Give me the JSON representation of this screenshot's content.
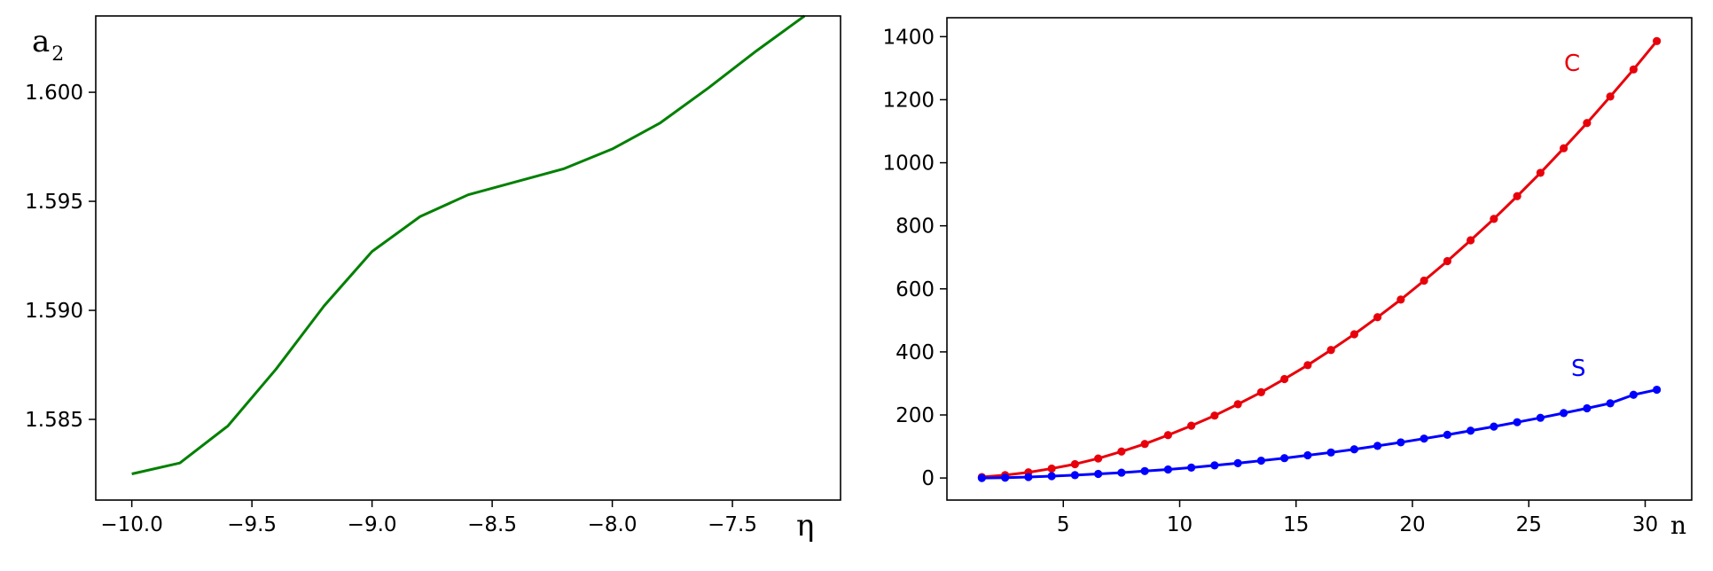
{
  "colors": {
    "green": "#008000",
    "red": "#e8000b",
    "blue": "#0000ff",
    "axes": "#000000"
  },
  "chart_data": [
    {
      "type": "line",
      "title": "",
      "xlabel": "η",
      "ylabel": {
        "base": "a",
        "sub": "2"
      },
      "xlim": [
        -10.15,
        -7.05
      ],
      "ylim": [
        1.5813,
        1.6035
      ],
      "xticks": [
        -10.0,
        -9.5,
        -9.0,
        -8.5,
        -8.0,
        -7.5
      ],
      "xtick_labels": [
        "−10.0",
        "−9.5",
        "−9.0",
        "−8.5",
        "−8.0",
        "−7.5"
      ],
      "yticks": [
        1.585,
        1.59,
        1.595,
        1.6
      ],
      "ytick_labels": [
        "1.585",
        "1.590",
        "1.595",
        "1.600"
      ],
      "grid": false,
      "series": [
        {
          "color": "#008000",
          "x": [
            -10.0,
            -9.8,
            -9.6,
            -9.4,
            -9.2,
            -9.0,
            -8.8,
            -8.6,
            -8.4,
            -8.2,
            -8.0,
            -7.8,
            -7.6,
            -7.4,
            -7.2
          ],
          "y": [
            1.5825,
            1.583,
            1.5847,
            1.5873,
            1.5902,
            1.5927,
            1.5943,
            1.5953,
            1.5959,
            1.5965,
            1.5974,
            1.5986,
            1.6002,
            1.6019,
            1.6035
          ]
        }
      ]
    },
    {
      "type": "line",
      "title": "",
      "xlabel": "n",
      "ylabel": "",
      "xlim": [
        0.0,
        32.0
      ],
      "ylim": [
        -70,
        1460
      ],
      "xticks": [
        5,
        10,
        15,
        20,
        25,
        30
      ],
      "xtick_labels": [
        "5",
        "10",
        "15",
        "20",
        "25",
        "30"
      ],
      "yticks": [
        0,
        200,
        400,
        600,
        800,
        1000,
        1200,
        1400
      ],
      "ytick_labels": [
        "0",
        "200",
        "400",
        "600",
        "800",
        "1000",
        "1200",
        "1400"
      ],
      "grid": false,
      "x": [
        1.5,
        2.5,
        3.5,
        4.5,
        5.5,
        6.5,
        7.5,
        8.5,
        9.5,
        10.5,
        11.5,
        12.5,
        13.5,
        14.5,
        15.5,
        16.5,
        17.5,
        18.5,
        19.5,
        20.5,
        21.5,
        22.5,
        23.5,
        24.5,
        25.5,
        26.5,
        27.5,
        28.5,
        29.5,
        30.5
      ],
      "series": [
        {
          "name": "C",
          "color": "#e8000b",
          "values": [
            3,
            9,
            18,
            30,
            44,
            62,
            84,
            108,
            136,
            166,
            198,
            234,
            272,
            314,
            358,
            406,
            456,
            510,
            566,
            626,
            688,
            754,
            822,
            894,
            968,
            1046,
            1126,
            1210,
            1296,
            1386
          ]
        },
        {
          "name": "S",
          "color": "#0000ff",
          "values": [
            0,
            1,
            3,
            6,
            9,
            13,
            17,
            22,
            27,
            33,
            40,
            47,
            55,
            63,
            72,
            81,
            91,
            102,
            113,
            125,
            137,
            150,
            163,
            177,
            191,
            206,
            221,
            237,
            264,
            280
          ]
        }
      ]
    }
  ]
}
